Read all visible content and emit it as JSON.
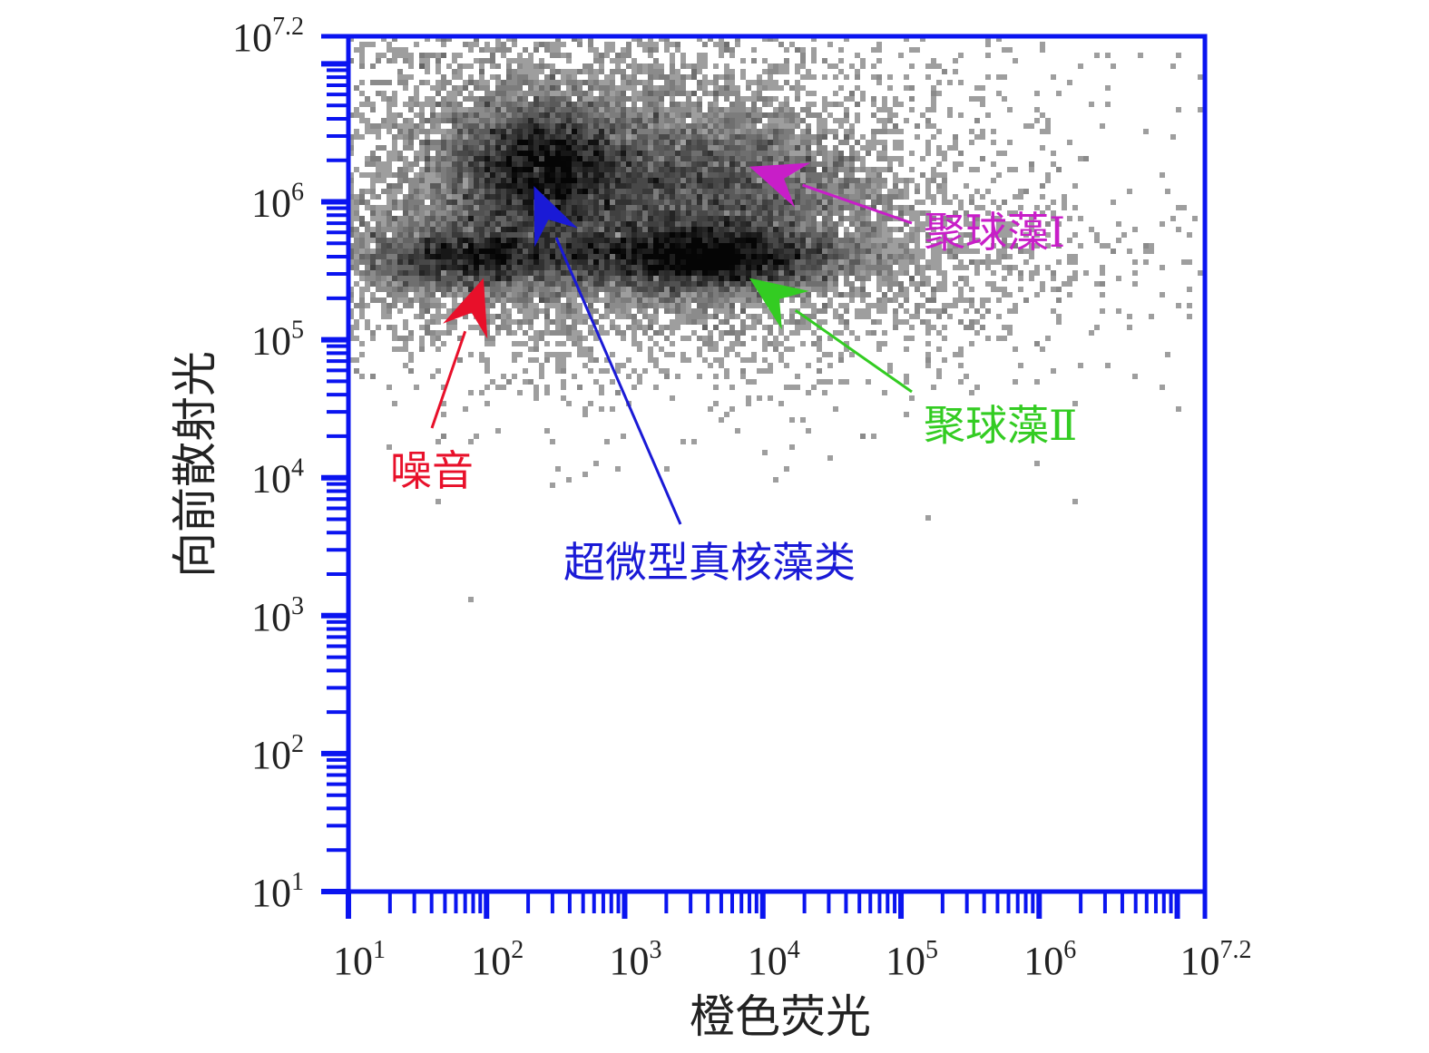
{
  "chart_data": {
    "type": "scatter",
    "subtype": "flow-cytometry density plot",
    "title": "",
    "xlabel": "橙色荧光",
    "ylabel": "向前散射光",
    "xscale": "log10",
    "yscale": "log10",
    "xlim": [
      10,
      15848932
    ],
    "ylim": [
      10,
      15848932
    ],
    "x_ticks": [
      {
        "value": 10,
        "base": "10",
        "exp": "1"
      },
      {
        "value": 100,
        "base": "10",
        "exp": "2"
      },
      {
        "value": 1000,
        "base": "10",
        "exp": "3"
      },
      {
        "value": 10000,
        "base": "10",
        "exp": "4"
      },
      {
        "value": 100000,
        "base": "10",
        "exp": "5"
      },
      {
        "value": 1000000,
        "base": "10",
        "exp": "6"
      },
      {
        "value": 15848932,
        "base": "10",
        "exp": "7.2"
      }
    ],
    "y_ticks": [
      {
        "value": 10,
        "base": "10",
        "exp": "1"
      },
      {
        "value": 100,
        "base": "10",
        "exp": "2"
      },
      {
        "value": 1000,
        "base": "10",
        "exp": "3"
      },
      {
        "value": 10000,
        "base": "10",
        "exp": "4"
      },
      {
        "value": 100000,
        "base": "10",
        "exp": "5"
      },
      {
        "value": 1000000,
        "base": "10",
        "exp": "6"
      },
      {
        "value": 15848932,
        "base": "10",
        "exp": "7.2"
      }
    ],
    "grid": false,
    "legend": "none",
    "populations": [
      {
        "label": "超微型真核藻类",
        "color": "#1a1ad6",
        "center": {
          "x": 250,
          "y": 1800000
        },
        "spread_decades": {
          "x": 0.35,
          "y": 0.25
        },
        "weight": 1.0,
        "arrow_tip": {
          "x": 220,
          "y": 1300000
        }
      },
      {
        "label": "聚球藻Ⅰ",
        "color": "#c81ec8",
        "center": {
          "x": 4000,
          "y": 1300000
        },
        "spread_decades": {
          "x": 0.55,
          "y": 0.3
        },
        "weight": 0.75,
        "arrow_tip": {
          "x": 8000,
          "y": 1800000
        }
      },
      {
        "label": "聚球藻Ⅱ",
        "color": "#33cc22",
        "center": {
          "x": 3500,
          "y": 400000
        },
        "spread_decades": {
          "x": 0.5,
          "y": 0.08
        },
        "weight": 0.85,
        "arrow_tip": {
          "x": 8000,
          "y": 280000
        }
      },
      {
        "label": "噪音",
        "color": "#e8102a",
        "center": {
          "x": 80,
          "y": 400000
        },
        "spread_decades": {
          "x": 0.4,
          "y": 0.08
        },
        "weight": 0.45,
        "arrow_tip": {
          "x": 95,
          "y": 280000
        }
      }
    ],
    "axis_color": "#0a14f0"
  }
}
